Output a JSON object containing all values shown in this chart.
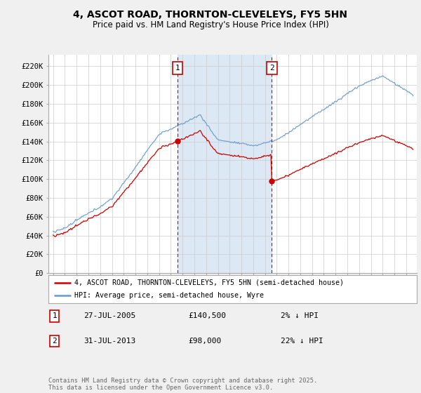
{
  "title": "4, ASCOT ROAD, THORNTON-CLEVELEYS, FY5 5HN",
  "subtitle": "Price paid vs. HM Land Registry's House Price Index (HPI)",
  "y_ticks": [
    0,
    20000,
    40000,
    60000,
    80000,
    100000,
    120000,
    140000,
    160000,
    180000,
    200000,
    220000
  ],
  "y_tick_labels": [
    "£0",
    "£20K",
    "£40K",
    "£60K",
    "£80K",
    "£100K",
    "£120K",
    "£140K",
    "£160K",
    "£180K",
    "£200K",
    "£220K"
  ],
  "ylim": [
    0,
    232000
  ],
  "marker1_date": 2005.57,
  "marker1_label": "1",
  "marker1_price": 140500,
  "marker2_date": 2013.58,
  "marker2_label": "2",
  "marker2_price": 98000,
  "shade_color": "#dce9f5",
  "vline_color": "#cc0000",
  "hpi_color": "#6699cc",
  "price_color": "#cc0000",
  "legend_label_price": "4, ASCOT ROAD, THORNTON-CLEVELEYS, FY5 5HN (semi-detached house)",
  "legend_label_hpi": "HPI: Average price, semi-detached house, Wyre",
  "footer": "Contains HM Land Registry data © Crown copyright and database right 2025.\nThis data is licensed under the Open Government Licence v3.0.",
  "background_color": "#f0f0f0",
  "plot_bg_color": "#ffffff",
  "grid_color": "#cccccc"
}
